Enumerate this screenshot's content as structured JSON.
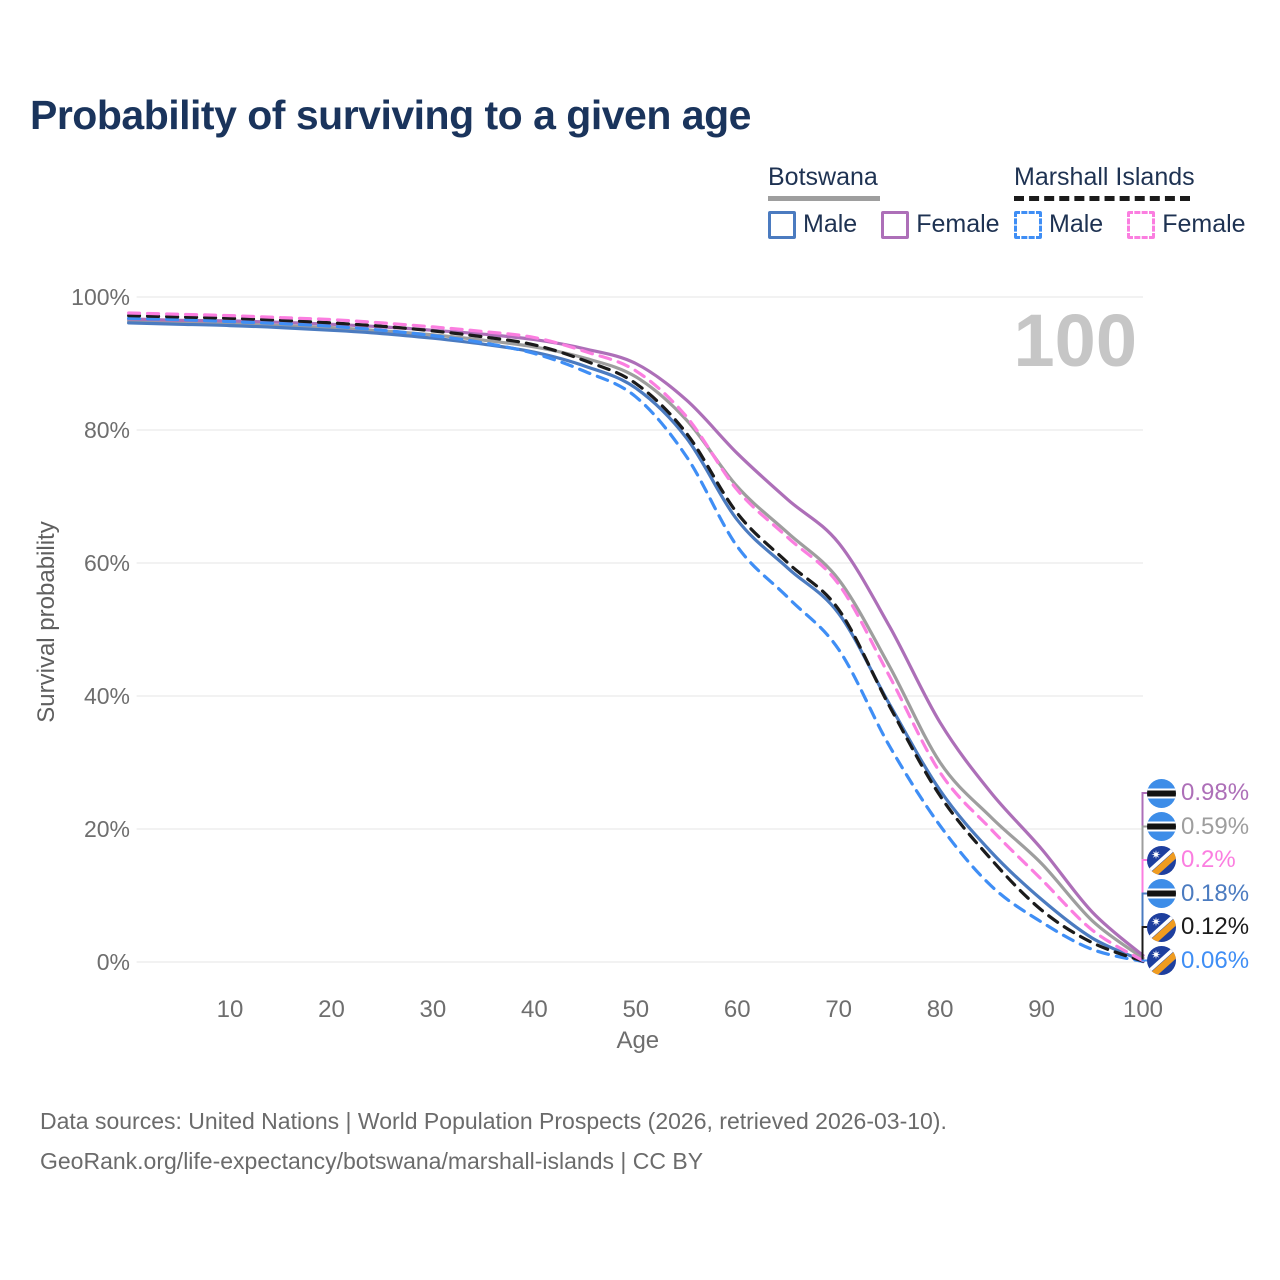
{
  "title": "Probability of surviving to a given age",
  "watermark": "100",
  "legend": {
    "groups": [
      {
        "name": "Botswana",
        "line_color": "#9e9e9e",
        "line_style": "solid",
        "items": [
          {
            "label": "Male",
            "color": "#4b7bc0",
            "style": "solid"
          },
          {
            "label": "Female",
            "color": "#ad6fb8",
            "style": "solid"
          }
        ]
      },
      {
        "name": "Marshall Islands",
        "line_color": "#1b1b1b",
        "line_style": "dashed",
        "items": [
          {
            "label": "Male",
            "color": "#3f8ef5",
            "style": "dashed"
          },
          {
            "label": "Female",
            "color": "#fb7ee0",
            "style": "dashed"
          }
        ]
      }
    ]
  },
  "chart_data": {
    "type": "line",
    "title": "Probability of surviving to a given age",
    "xlabel": "Age",
    "ylabel": "Survival probability",
    "xlim": [
      0,
      100
    ],
    "ylim": [
      0,
      100
    ],
    "grid": "horizontal",
    "legend_position": "top-right",
    "x_ticks": [
      10,
      20,
      30,
      40,
      50,
      60,
      70,
      80,
      90,
      100
    ],
    "y_ticks": [
      {
        "value": 0,
        "label": "0%"
      },
      {
        "value": 20,
        "label": "20%"
      },
      {
        "value": 40,
        "label": "40%"
      },
      {
        "value": 60,
        "label": "60%"
      },
      {
        "value": 80,
        "label": "80%"
      },
      {
        "value": 100,
        "label": "100%"
      }
    ],
    "x": [
      0,
      5,
      10,
      15,
      20,
      25,
      30,
      35,
      40,
      45,
      50,
      55,
      60,
      65,
      70,
      75,
      80,
      85,
      90,
      95,
      100
    ],
    "series": [
      {
        "id": "botswana-female",
        "name": "Botswana Female",
        "country": "Botswana",
        "sex": "Female",
        "color": "#ad6fb8",
        "dashed": false,
        "flag": "botswana",
        "end_label": "0.98%",
        "values": [
          96.7,
          96.5,
          96.4,
          96.2,
          95.9,
          95.5,
          95.0,
          94.4,
          93.6,
          92.2,
          90.0,
          84.5,
          76.5,
          69.5,
          63.0,
          50.5,
          36.0,
          25.5,
          17.0,
          7.5,
          0.98
        ]
      },
      {
        "id": "botswana-all",
        "name": "Botswana (both sexes)",
        "country": "Botswana",
        "sex": "All",
        "color": "#9e9e9e",
        "dashed": false,
        "flag": "botswana",
        "end_label": "0.59%",
        "values": [
          96.4,
          96.2,
          96.0,
          95.7,
          95.4,
          94.9,
          94.3,
          93.5,
          92.5,
          90.8,
          88.0,
          81.5,
          71.5,
          64.5,
          57.5,
          44.5,
          30.0,
          21.8,
          14.8,
          6.2,
          0.59
        ]
      },
      {
        "id": "marshall-islands-female",
        "name": "Marshall Islands Female",
        "country": "Marshall Islands",
        "sex": "Female",
        "color": "#fb7ee0",
        "dashed": true,
        "flag": "marshall-islands",
        "end_label": "0.2%",
        "values": [
          97.6,
          97.4,
          97.2,
          96.9,
          96.6,
          96.1,
          95.5,
          94.8,
          93.9,
          91.8,
          88.9,
          82.0,
          71.0,
          63.8,
          56.8,
          43.0,
          28.5,
          20.0,
          12.4,
          4.8,
          0.2
        ]
      },
      {
        "id": "botswana-male",
        "name": "Botswana Male",
        "country": "Botswana",
        "sex": "Male",
        "color": "#4b7bc0",
        "dashed": false,
        "flag": "botswana",
        "end_label": "0.18%",
        "values": [
          96.1,
          95.9,
          95.7,
          95.4,
          95.0,
          94.5,
          93.8,
          92.9,
          91.7,
          89.6,
          86.3,
          78.8,
          66.5,
          59.2,
          52.4,
          38.8,
          25.8,
          16.6,
          9.4,
          3.6,
          0.18
        ]
      },
      {
        "id": "marshall-islands-all",
        "name": "Marshall Islands (both sexes)",
        "country": "Marshall Islands",
        "sex": "All",
        "color": "#1b1b1b",
        "dashed": true,
        "flag": "marshall-islands",
        "end_label": "0.12%",
        "values": [
          97.2,
          97.0,
          96.8,
          96.5,
          96.1,
          95.6,
          94.9,
          94.0,
          92.8,
          90.4,
          87.0,
          79.5,
          67.5,
          60.0,
          53.0,
          38.5,
          25.0,
          15.5,
          7.8,
          2.9,
          0.12
        ]
      },
      {
        "id": "marshall-islands-male",
        "name": "Marshall Islands Male",
        "country": "Marshall Islands",
        "sex": "Male",
        "color": "#3f8ef5",
        "dashed": true,
        "flag": "marshall-islands",
        "end_label": "0.06%",
        "values": [
          96.8,
          96.6,
          96.3,
          96.0,
          95.6,
          95.0,
          94.2,
          93.1,
          91.5,
          88.8,
          85.0,
          76.0,
          62.5,
          54.8,
          47.0,
          32.5,
          20.5,
          11.5,
          6.0,
          1.9,
          0.06
        ]
      }
    ],
    "flag_colors": {
      "botswana": {
        "field": "#3d8de8",
        "stripe": "#121212",
        "edge": "#ffffff"
      },
      "marshall-islands": {
        "field": "#1e3f9e",
        "band_white": "#ffffff",
        "band_orange": "#f09c20",
        "star": "#ffffff"
      }
    }
  },
  "footer": {
    "line1": "Data sources: United Nations | World Population Prospects (2026, retrieved 2026-03-10).",
    "line2": "GeoRank.org/life-expectancy/botswana/marshall-islands | CC BY"
  }
}
